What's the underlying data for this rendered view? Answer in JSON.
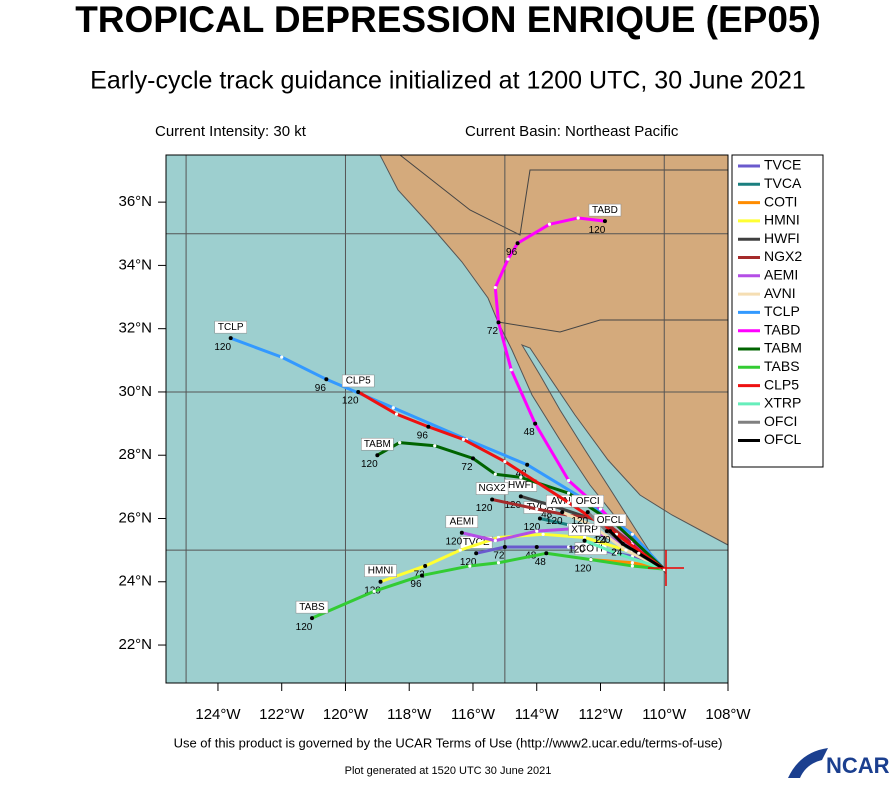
{
  "map": {
    "title": "TROPICAL DEPRESSION ENRIQUE (EP05)",
    "subtitle": "Early-cycle track guidance initialized at 1200 UTC, 30 June 2021",
    "intensity": "Current Intensity: 30 kt",
    "basin": "Current Basin: Northeast Pacific",
    "lonlim": [
      -125.63,
      -108
    ],
    "latlim": [
      20.8,
      37.49
    ],
    "lonticks": [
      {
        "value": -124,
        "label": "124°W"
      },
      {
        "value": -122,
        "label": "122°W"
      },
      {
        "value": -120,
        "label": "120°W"
      },
      {
        "value": -118,
        "label": "118°W"
      },
      {
        "value": -116,
        "label": "116°W"
      },
      {
        "value": -114,
        "label": "114°W"
      },
      {
        "value": -112,
        "label": "112°W"
      },
      {
        "value": -110,
        "label": "110°W"
      },
      {
        "value": -108,
        "label": "108°W"
      }
    ],
    "latticks": [
      {
        "value": 22,
        "label": "22°N"
      },
      {
        "value": 24,
        "label": "24°N"
      },
      {
        "value": 26,
        "label": "26°N"
      },
      {
        "value": 28,
        "label": "28°N"
      },
      {
        "value": 30,
        "label": "30°N"
      },
      {
        "value": 32,
        "label": "32°N"
      },
      {
        "value": 34,
        "label": "34°N"
      },
      {
        "value": 36,
        "label": "36°N"
      }
    ],
    "grid_lons": [
      -125,
      -120,
      -115,
      -110
    ],
    "grid_lats": [
      25,
      30,
      35
    ],
    "tracks": [
      {
        "name": "TVCE",
        "color": "#6a5acd",
        "points": [
          {
            "lon": -115.9,
            "lat": 24.9
          },
          {
            "lon": -115,
            "lat": 25.1,
            "label": "72"
          },
          {
            "lon": -114,
            "lat": 25.1,
            "label": "48"
          },
          {
            "lon": -113,
            "lat": 25.1
          },
          {
            "lon": -112,
            "lat": 25.0
          },
          {
            "lon": -111,
            "lat": 24.8
          },
          {
            "lon": -110,
            "lat": 24.4
          }
        ]
      },
      {
        "name": "TVCA",
        "color": "#1a7f7f",
        "points": [
          {
            "lon": -113.9,
            "lat": 26.0
          },
          {
            "lon": -113,
            "lat": 25.8
          },
          {
            "lon": -112,
            "lat": 25.5
          },
          {
            "lon": -111,
            "lat": 25.0
          },
          {
            "lon": -110,
            "lat": 24.4
          }
        ]
      },
      {
        "name": "COTI",
        "color": "#ff8c00",
        "points": [
          {
            "lon": -112.3,
            "lat": 24.7
          },
          {
            "lon": -111,
            "lat": 24.6
          },
          {
            "lon": -110,
            "lat": 24.4
          }
        ]
      },
      {
        "name": "HMNI",
        "color": "#ffff33",
        "points": [
          {
            "lon": -118.9,
            "lat": 24.0
          },
          {
            "lon": -117.5,
            "lat": 24.5,
            "label": "72"
          },
          {
            "lon": -116.4,
            "lat": 25.0
          },
          {
            "lon": -115.2,
            "lat": 25.4
          },
          {
            "lon": -113.8,
            "lat": 25.5
          },
          {
            "lon": -112.5,
            "lat": 25.4
          },
          {
            "lon": -111.2,
            "lat": 25.0
          },
          {
            "lon": -110,
            "lat": 24.4
          }
        ]
      },
      {
        "name": "HWFI",
        "color": "#404040",
        "points": [
          {
            "lon": -114.5,
            "lat": 26.7
          },
          {
            "lon": -113.5,
            "lat": 26.4,
            "label": "48"
          },
          {
            "lon": -112,
            "lat": 25.9
          },
          {
            "lon": -111,
            "lat": 25.2
          },
          {
            "lon": -110,
            "lat": 24.4
          }
        ]
      },
      {
        "name": "NGX2",
        "color": "#a52a2a",
        "points": [
          {
            "lon": -115.4,
            "lat": 26.6
          },
          {
            "lon": -114,
            "lat": 26.3
          },
          {
            "lon": -113,
            "lat": 26.1
          },
          {
            "lon": -112,
            "lat": 26.0
          },
          {
            "lon": -111,
            "lat": 25.2
          },
          {
            "lon": -110,
            "lat": 24.4
          }
        ]
      },
      {
        "name": "AEMI",
        "color": "#b44ee6",
        "points": [
          {
            "lon": -116.35,
            "lat": 25.55
          },
          {
            "lon": -115.3,
            "lat": 25.3
          },
          {
            "lon": -114,
            "lat": 25.6
          },
          {
            "lon": -112.5,
            "lat": 25.7
          },
          {
            "lon": -111,
            "lat": 25.1
          },
          {
            "lon": -110,
            "lat": 24.4
          }
        ]
      },
      {
        "name": "AVNI",
        "color": "#f5deb3",
        "points": [
          {
            "lon": -113.2,
            "lat": 26.2
          },
          {
            "lon": -112.3,
            "lat": 25.8
          },
          {
            "lon": -111.2,
            "lat": 25.0
          },
          {
            "lon": -110,
            "lat": 24.4
          }
        ]
      },
      {
        "name": "TCLP",
        "color": "#3399ff",
        "points": [
          {
            "lon": -123.6,
            "lat": 31.7
          },
          {
            "lon": -122,
            "lat": 31.1
          },
          {
            "lon": -120.6,
            "lat": 30.4,
            "label": "96"
          },
          {
            "lon": -118.5,
            "lat": 29.5
          },
          {
            "lon": -116.2,
            "lat": 28.5
          },
          {
            "lon": -114.3,
            "lat": 27.7,
            "label": "48"
          },
          {
            "lon": -112.5,
            "lat": 26.6
          },
          {
            "lon": -111,
            "lat": 25.5
          },
          {
            "lon": -110,
            "lat": 24.4
          }
        ]
      },
      {
        "name": "TABD",
        "color": "#ff00ff",
        "points": [
          {
            "lon": -111.86,
            "lat": 35.4
          },
          {
            "lon": -112.7,
            "lat": 35.5
          },
          {
            "lon": -113.6,
            "lat": 35.3
          },
          {
            "lon": -114.6,
            "lat": 34.7,
            "label": "96"
          },
          {
            "lon": -114.9,
            "lat": 34.2
          },
          {
            "lon": -115.3,
            "lat": 33.3
          },
          {
            "lon": -115.2,
            "lat": 32.2,
            "label": "72"
          },
          {
            "lon": -114.8,
            "lat": 30.7
          },
          {
            "lon": -114.05,
            "lat": 29.0,
            "label": "48"
          },
          {
            "lon": -113,
            "lat": 27.2
          },
          {
            "lon": -112,
            "lat": 26.3
          },
          {
            "lon": -111,
            "lat": 25.3
          },
          {
            "lon": -110,
            "lat": 24.4
          }
        ]
      },
      {
        "name": "TABM",
        "color": "#006400",
        "points": [
          {
            "lon": -119,
            "lat": 28.0
          },
          {
            "lon": -118.3,
            "lat": 28.4
          },
          {
            "lon": -117.2,
            "lat": 28.3
          },
          {
            "lon": -116,
            "lat": 27.9,
            "label": "72"
          },
          {
            "lon": -115.3,
            "lat": 27.4
          },
          {
            "lon": -114.5,
            "lat": 27.3
          },
          {
            "lon": -113,
            "lat": 26.8
          },
          {
            "lon": -111.5,
            "lat": 25.8
          },
          {
            "lon": -110,
            "lat": 24.4
          }
        ]
      },
      {
        "name": "TABS",
        "color": "#33cc33",
        "points": [
          {
            "lon": -121.05,
            "lat": 22.85
          },
          {
            "lon": -119.1,
            "lat": 23.7
          },
          {
            "lon": -117.6,
            "lat": 24.2,
            "label": "96"
          },
          {
            "lon": -116.1,
            "lat": 24.5
          },
          {
            "lon": -115.2,
            "lat": 24.6
          },
          {
            "lon": -113.7,
            "lat": 24.9,
            "label": "48"
          },
          {
            "lon": -112.3,
            "lat": 24.7
          },
          {
            "lon": -111,
            "lat": 24.5
          },
          {
            "lon": -110,
            "lat": 24.4
          }
        ]
      },
      {
        "name": "CLP5",
        "color": "#ee1111",
        "points": [
          {
            "lon": -119.6,
            "lat": 30.0
          },
          {
            "lon": -118.4,
            "lat": 29.3
          },
          {
            "lon": -117.4,
            "lat": 28.9,
            "label": "96"
          },
          {
            "lon": -116.3,
            "lat": 28.5
          },
          {
            "lon": -115,
            "lat": 27.8
          },
          {
            "lon": -113,
            "lat": 26.5
          },
          {
            "lon": -111.5,
            "lat": 25.5
          },
          {
            "lon": -110,
            "lat": 24.4
          }
        ]
      },
      {
        "name": "XTRP",
        "color": "#66eebb",
        "points": [
          {
            "lon": -112.5,
            "lat": 25.3
          },
          {
            "lon": -111.5,
            "lat": 24.9
          },
          {
            "lon": -110,
            "lat": 24.4
          }
        ]
      },
      {
        "name": "OFCI",
        "color": "#808080",
        "points": [
          {
            "lon": -112.4,
            "lat": 26.2
          },
          {
            "lon": -111.8,
            "lat": 25.6,
            "label": "24"
          },
          {
            "lon": -111,
            "lat": 25.0
          },
          {
            "lon": -110,
            "lat": 24.4
          }
        ]
      },
      {
        "name": "OFCL",
        "color": "#000000",
        "points": [
          {
            "lon": -111.7,
            "lat": 25.6
          },
          {
            "lon": -111.3,
            "lat": 25.2,
            "label": "24"
          },
          {
            "lon": -110.8,
            "lat": 24.9
          },
          {
            "lon": -110,
            "lat": 24.4
          }
        ]
      }
    ],
    "start_label": "120",
    "footer": "Use of this product is governed by the UCAR Terms of Use (http://www2.ucar.edu/terms-of-use)",
    "generated": "Plot generated at 1520 UTC   30 June 2021",
    "logo": "NCAR"
  }
}
